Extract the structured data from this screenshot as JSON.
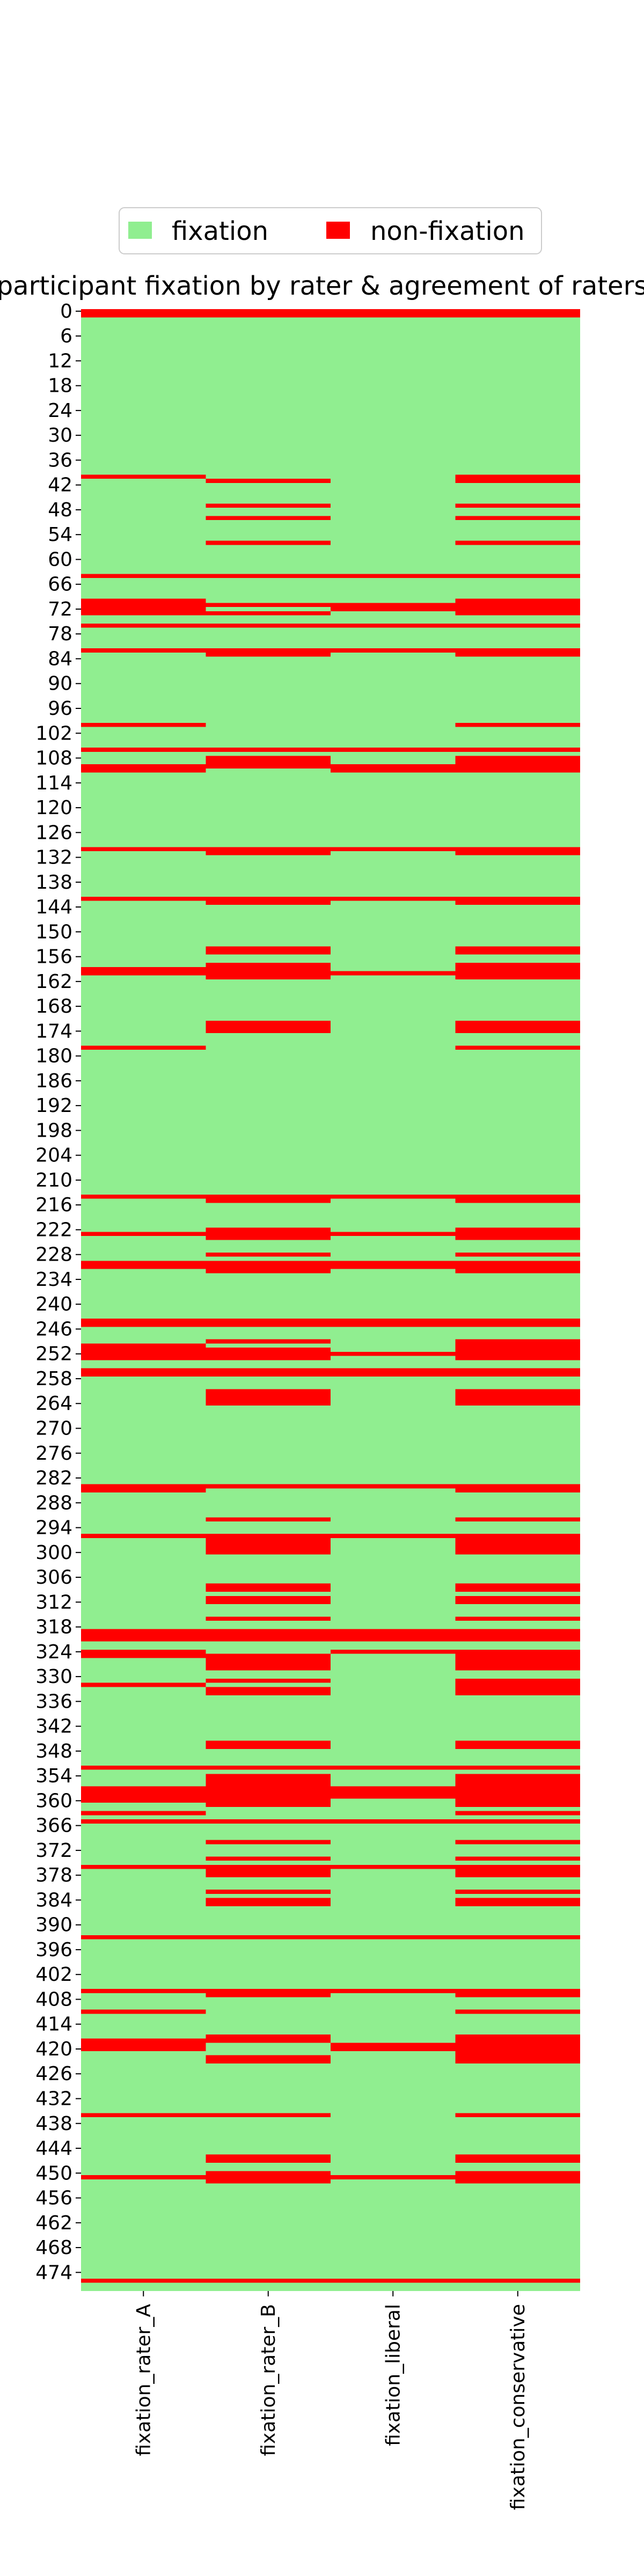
{
  "chart_data": {
    "type": "heatmap",
    "title": "participant fixation by rater & agreement of raters",
    "xlabel": "",
    "ylabel": "",
    "columns": [
      "fixation_rater_A",
      "fixation_rater_B",
      "fixation_liberal",
      "fixation_conservative"
    ],
    "n_rows": 479,
    "row_tick_step": 6,
    "row_tick_labels": [
      "0",
      "6",
      "12",
      "18",
      "24",
      "30",
      "36",
      "42",
      "48",
      "54",
      "60",
      "66",
      "72",
      "78",
      "84",
      "90",
      "96",
      "102",
      "108",
      "114",
      "120",
      "126",
      "132",
      "138",
      "144",
      "150",
      "156",
      "162",
      "168",
      "174",
      "180",
      "186",
      "192",
      "198",
      "204",
      "210",
      "216",
      "222",
      "228",
      "234",
      "240",
      "246",
      "252",
      "258",
      "264",
      "270",
      "276",
      "282",
      "288",
      "294",
      "300",
      "306",
      "312",
      "318",
      "324",
      "330",
      "336",
      "342",
      "348",
      "354",
      "360",
      "366",
      "372",
      "378",
      "384",
      "390",
      "396",
      "402",
      "408",
      "414",
      "420",
      "426",
      "432",
      "438",
      "444",
      "450",
      "456",
      "462",
      "468",
      "474"
    ],
    "legend": {
      "placement": "top-center",
      "items": [
        {
          "label": "fixation",
          "color": "#90ee90"
        },
        {
          "label": "non-fixation",
          "color": "#ff0000"
        }
      ]
    },
    "colors": {
      "fixation": "#90ee90",
      "non-fixation": "#ff0000"
    },
    "non_fixation_rows": {
      "fixation_rater_A": [
        [
          0,
          1
        ],
        [
          40,
          40
        ],
        [
          64,
          64
        ],
        [
          70,
          73
        ],
        [
          76,
          76
        ],
        [
          82,
          82
        ],
        [
          100,
          100
        ],
        [
          106,
          106
        ],
        [
          110,
          111
        ],
        [
          130,
          130
        ],
        [
          142,
          142
        ],
        [
          159,
          160
        ],
        [
          178,
          178
        ],
        [
          214,
          214
        ],
        [
          223,
          223
        ],
        [
          230,
          231
        ],
        [
          244,
          245
        ],
        [
          250,
          253
        ],
        [
          256,
          257
        ],
        [
          284,
          285
        ],
        [
          296,
          296
        ],
        [
          319,
          321
        ],
        [
          324,
          325
        ],
        [
          332,
          332
        ],
        [
          352,
          352
        ],
        [
          357,
          360
        ],
        [
          363,
          363
        ],
        [
          365,
          365
        ],
        [
          376,
          376
        ],
        [
          393,
          393
        ],
        [
          406,
          406
        ],
        [
          411,
          411
        ],
        [
          418,
          420
        ],
        [
          436,
          436
        ],
        [
          451,
          451
        ],
        [
          476,
          476
        ]
      ],
      "fixation_rater_B": [
        [
          0,
          1
        ],
        [
          41,
          41
        ],
        [
          47,
          47
        ],
        [
          50,
          50
        ],
        [
          56,
          56
        ],
        [
          64,
          64
        ],
        [
          71,
          71
        ],
        [
          73,
          73
        ],
        [
          76,
          76
        ],
        [
          82,
          83
        ],
        [
          106,
          106
        ],
        [
          108,
          110
        ],
        [
          130,
          131
        ],
        [
          142,
          143
        ],
        [
          154,
          155
        ],
        [
          158,
          161
        ],
        [
          172,
          174
        ],
        [
          214,
          215
        ],
        [
          222,
          224
        ],
        [
          228,
          228
        ],
        [
          230,
          232
        ],
        [
          244,
          245
        ],
        [
          249,
          249
        ],
        [
          251,
          253
        ],
        [
          256,
          257
        ],
        [
          261,
          264
        ],
        [
          284,
          284
        ],
        [
          292,
          292
        ],
        [
          296,
          300
        ],
        [
          308,
          309
        ],
        [
          311,
          312
        ],
        [
          316,
          316
        ],
        [
          319,
          321
        ],
        [
          325,
          328
        ],
        [
          331,
          331
        ],
        [
          333,
          334
        ],
        [
          346,
          347
        ],
        [
          352,
          352
        ],
        [
          354,
          356
        ],
        [
          357,
          361
        ],
        [
          365,
          365
        ],
        [
          370,
          370
        ],
        [
          374,
          374
        ],
        [
          376,
          378
        ],
        [
          382,
          382
        ],
        [
          384,
          385
        ],
        [
          393,
          393
        ],
        [
          406,
          407
        ],
        [
          417,
          418
        ],
        [
          422,
          423
        ],
        [
          436,
          436
        ],
        [
          446,
          447
        ],
        [
          450,
          452
        ],
        [
          476,
          476
        ]
      ],
      "fixation_rater_liberal": [],
      "fixation_liberal": [
        [
          0,
          1
        ],
        [
          64,
          64
        ],
        [
          71,
          72
        ],
        [
          76,
          76
        ],
        [
          82,
          82
        ],
        [
          106,
          106
        ],
        [
          110,
          111
        ],
        [
          130,
          130
        ],
        [
          142,
          142
        ],
        [
          160,
          160
        ],
        [
          214,
          214
        ],
        [
          223,
          223
        ],
        [
          230,
          231
        ],
        [
          244,
          245
        ],
        [
          252,
          252
        ],
        [
          256,
          257
        ],
        [
          284,
          284
        ],
        [
          296,
          296
        ],
        [
          319,
          321
        ],
        [
          324,
          324
        ],
        [
          352,
          352
        ],
        [
          357,
          359
        ],
        [
          365,
          365
        ],
        [
          376,
          376
        ],
        [
          393,
          393
        ],
        [
          406,
          406
        ],
        [
          419,
          420
        ],
        [
          451,
          451
        ],
        [
          476,
          476
        ]
      ],
      "fixation_conservative": [
        [
          0,
          1
        ],
        [
          40,
          41
        ],
        [
          47,
          47
        ],
        [
          50,
          50
        ],
        [
          56,
          56
        ],
        [
          64,
          64
        ],
        [
          70,
          73
        ],
        [
          76,
          76
        ],
        [
          82,
          83
        ],
        [
          100,
          100
        ],
        [
          106,
          106
        ],
        [
          108,
          111
        ],
        [
          130,
          131
        ],
        [
          142,
          143
        ],
        [
          154,
          155
        ],
        [
          158,
          161
        ],
        [
          172,
          174
        ],
        [
          178,
          178
        ],
        [
          214,
          215
        ],
        [
          222,
          224
        ],
        [
          228,
          228
        ],
        [
          230,
          232
        ],
        [
          244,
          245
        ],
        [
          249,
          253
        ],
        [
          256,
          257
        ],
        [
          261,
          264
        ],
        [
          284,
          285
        ],
        [
          292,
          292
        ],
        [
          296,
          300
        ],
        [
          308,
          309
        ],
        [
          311,
          312
        ],
        [
          316,
          316
        ],
        [
          319,
          321
        ],
        [
          324,
          328
        ],
        [
          331,
          334
        ],
        [
          346,
          347
        ],
        [
          352,
          352
        ],
        [
          354,
          356
        ],
        [
          357,
          361
        ],
        [
          363,
          363
        ],
        [
          365,
          365
        ],
        [
          370,
          370
        ],
        [
          374,
          374
        ],
        [
          376,
          378
        ],
        [
          382,
          382
        ],
        [
          384,
          385
        ],
        [
          393,
          393
        ],
        [
          406,
          407
        ],
        [
          411,
          411
        ],
        [
          417,
          423
        ],
        [
          436,
          436
        ],
        [
          446,
          447
        ],
        [
          450,
          452
        ],
        [
          476,
          476
        ]
      ]
    }
  }
}
